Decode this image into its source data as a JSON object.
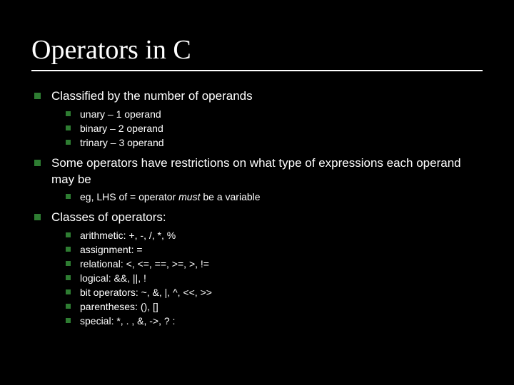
{
  "slide": {
    "background_color": "#000000",
    "text_color": "#ffffff",
    "bullet_color": "#2e7d32",
    "title": {
      "text": "Operators in C",
      "font_family": "Times New Roman",
      "font_size": 38,
      "underline_color": "#ffffff"
    },
    "body_font_family": "Arial",
    "lvl1_font_size": 17,
    "lvl2_font_size": 14,
    "items": [
      {
        "text": "Classified by the number of operands",
        "children": [
          {
            "text": "unary – 1 operand"
          },
          {
            "text": "binary – 2 operand"
          },
          {
            "text": "trinary – 3 operand"
          }
        ]
      },
      {
        "text": "Some operators have restrictions on what type of expressions each operand may be",
        "children": [
          {
            "prefix": "eg, LHS of = operator ",
            "italic": "must",
            "suffix": " be a variable"
          }
        ]
      },
      {
        "text": "Classes of operators:",
        "children": [
          {
            "text": "arithmetic: +, -, /, *, %"
          },
          {
            "text": "assignment: ="
          },
          {
            "text": "relational: <, <=, ==, >=, >, !="
          },
          {
            "text": "logical: &&, ||, !"
          },
          {
            "text": "bit operators: ~, &, |, ^, <<, >>"
          },
          {
            "text": "parentheses: (), []"
          },
          {
            "text": "special:   *, . , &, ->, ? :"
          }
        ]
      }
    ]
  }
}
